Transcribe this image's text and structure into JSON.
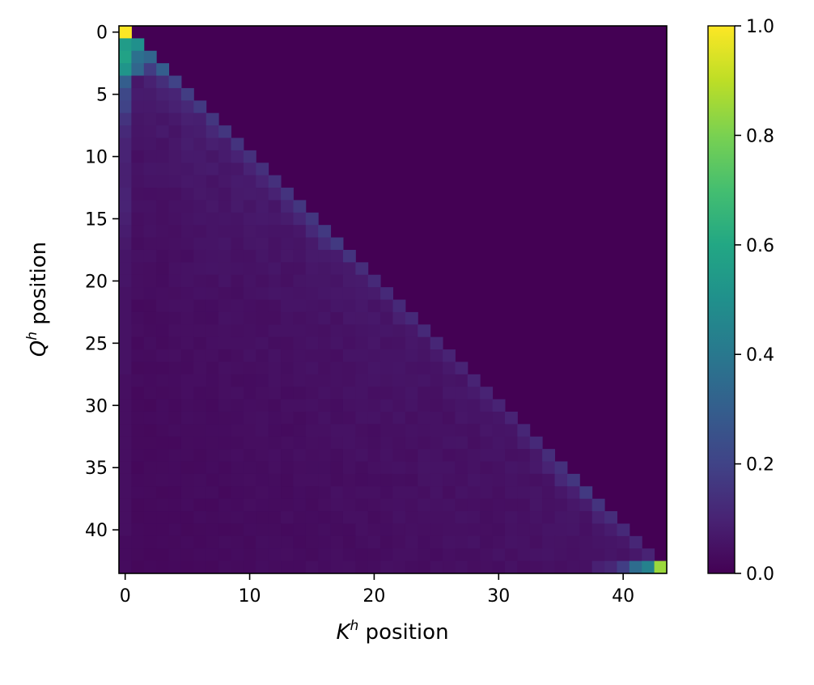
{
  "chart_data": {
    "type": "heatmap",
    "xlabel": {
      "base": "K",
      "sup": "h",
      "rest": " position"
    },
    "ylabel": {
      "base": "Q",
      "sup": "h",
      "rest": " position"
    },
    "n": 44,
    "x_ticks": [
      0,
      10,
      20,
      30,
      40
    ],
    "y_ticks": [
      0,
      5,
      10,
      15,
      20,
      25,
      30,
      35,
      40
    ],
    "colorbar": {
      "min": 0.0,
      "max": 1.0,
      "ticks": [
        "0.0",
        "0.2",
        "0.4",
        "0.6",
        "0.8",
        "1.0"
      ]
    },
    "colormap": "viridis",
    "mask": "causal lower-triangular (zero above diagonal)",
    "diagonal_profile": [
      1.0,
      0.5,
      0.33,
      0.3,
      0.2,
      0.18,
      0.17,
      0.16,
      0.16,
      0.15,
      0.14,
      0.14,
      0.14,
      0.15,
      0.16,
      0.16,
      0.17,
      0.17,
      0.15,
      0.13,
      0.12,
      0.12,
      0.12,
      0.12,
      0.12,
      0.11,
      0.1,
      0.1,
      0.1,
      0.1,
      0.1,
      0.1,
      0.11,
      0.12,
      0.13,
      0.14,
      0.16,
      0.17,
      0.15,
      0.13,
      0.12,
      0.11,
      0.1,
      0.85
    ],
    "column0_profile": [
      1.0,
      0.55,
      0.58,
      0.52,
      0.3,
      0.22,
      0.2,
      0.15,
      0.12,
      0.1,
      0.1,
      0.09,
      0.09,
      0.1,
      0.1,
      0.09,
      0.08,
      0.07,
      0.06,
      0.06,
      0.06,
      0.05,
      0.05,
      0.05,
      0.05,
      0.05,
      0.05,
      0.05,
      0.04,
      0.04,
      0.04,
      0.04,
      0.04,
      0.04,
      0.04,
      0.04,
      0.04,
      0.04,
      0.04,
      0.04,
      0.04,
      0.03,
      0.03,
      0.03
    ]
  }
}
